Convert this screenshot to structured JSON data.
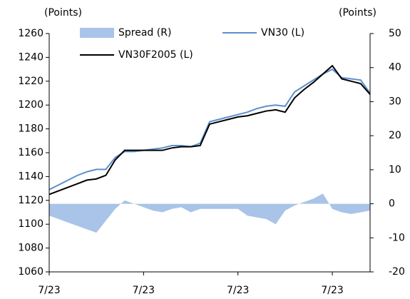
{
  "chart_data": {
    "type": "line",
    "y_label": "(Points)",
    "y2_label": "(Points)",
    "x": [
      0,
      1,
      2,
      3,
      4,
      5,
      6,
      7,
      8,
      9,
      10,
      11,
      12,
      13,
      14,
      15,
      16,
      17,
      18,
      19,
      20,
      21,
      22,
      23,
      24,
      25,
      26,
      27,
      28,
      29,
      30,
      31,
      32,
      33,
      34
    ],
    "xlim": [
      0,
      34
    ],
    "xticks": [
      {
        "value": 0,
        "label": "7/23"
      },
      {
        "value": 10,
        "label": "7/23"
      },
      {
        "value": 20,
        "label": "7/23"
      },
      {
        "value": 30,
        "label": "7/23"
      }
    ],
    "ylim": [
      1060,
      1260
    ],
    "yticks": [
      1060,
      1080,
      1100,
      1120,
      1140,
      1160,
      1180,
      1200,
      1220,
      1240,
      1260
    ],
    "y2lim": [
      -20,
      50
    ],
    "y2ticks": [
      -20,
      -10,
      0,
      10,
      20,
      30,
      40,
      50
    ],
    "series": [
      {
        "name": "Spread (R)",
        "type": "area",
        "axis": "y2",
        "color": "#a9c4e8",
        "values": [
          -3.5,
          -4.5,
          -5.5,
          -6.5,
          -7.5,
          -8.5,
          -5,
          -1.5,
          1,
          0,
          -1,
          -2,
          -2.5,
          -1.5,
          -1,
          -2.5,
          -1.5,
          -1.5,
          -1.5,
          -1.5,
          -1.5,
          -3.5,
          -4,
          -4.5,
          -6,
          -2,
          -0.5,
          0.5,
          1.5,
          3,
          -1.5,
          -2.5,
          -3,
          -2.5,
          -2
        ]
      },
      {
        "name": "VN30 (L)",
        "type": "line",
        "color": "#5b8fcf",
        "values": [
          1129,
          1133,
          1137,
          1141,
          1144,
          1146,
          1146,
          1156,
          1161,
          1161,
          1162,
          1163,
          1164,
          1166,
          1166,
          1165,
          1168,
          1186,
          1188,
          1190,
          1192,
          1194,
          1197,
          1199,
          1200,
          1199,
          1211,
          1216,
          1221,
          1226,
          1230,
          1223,
          1222,
          1221,
          1210
        ]
      },
      {
        "name": "VN30F2005 (L)",
        "type": "line",
        "color": "#000000",
        "values": [
          1125,
          1128,
          1131,
          1134,
          1137,
          1138,
          1141,
          1154,
          1162,
          1162,
          1162,
          1162,
          1162,
          1164,
          1165,
          1165,
          1166,
          1184,
          1186,
          1188,
          1190,
          1191,
          1193,
          1195,
          1196,
          1194,
          1206,
          1213,
          1219,
          1226,
          1233,
          1222,
          1220,
          1218,
          1209
        ]
      }
    ]
  }
}
